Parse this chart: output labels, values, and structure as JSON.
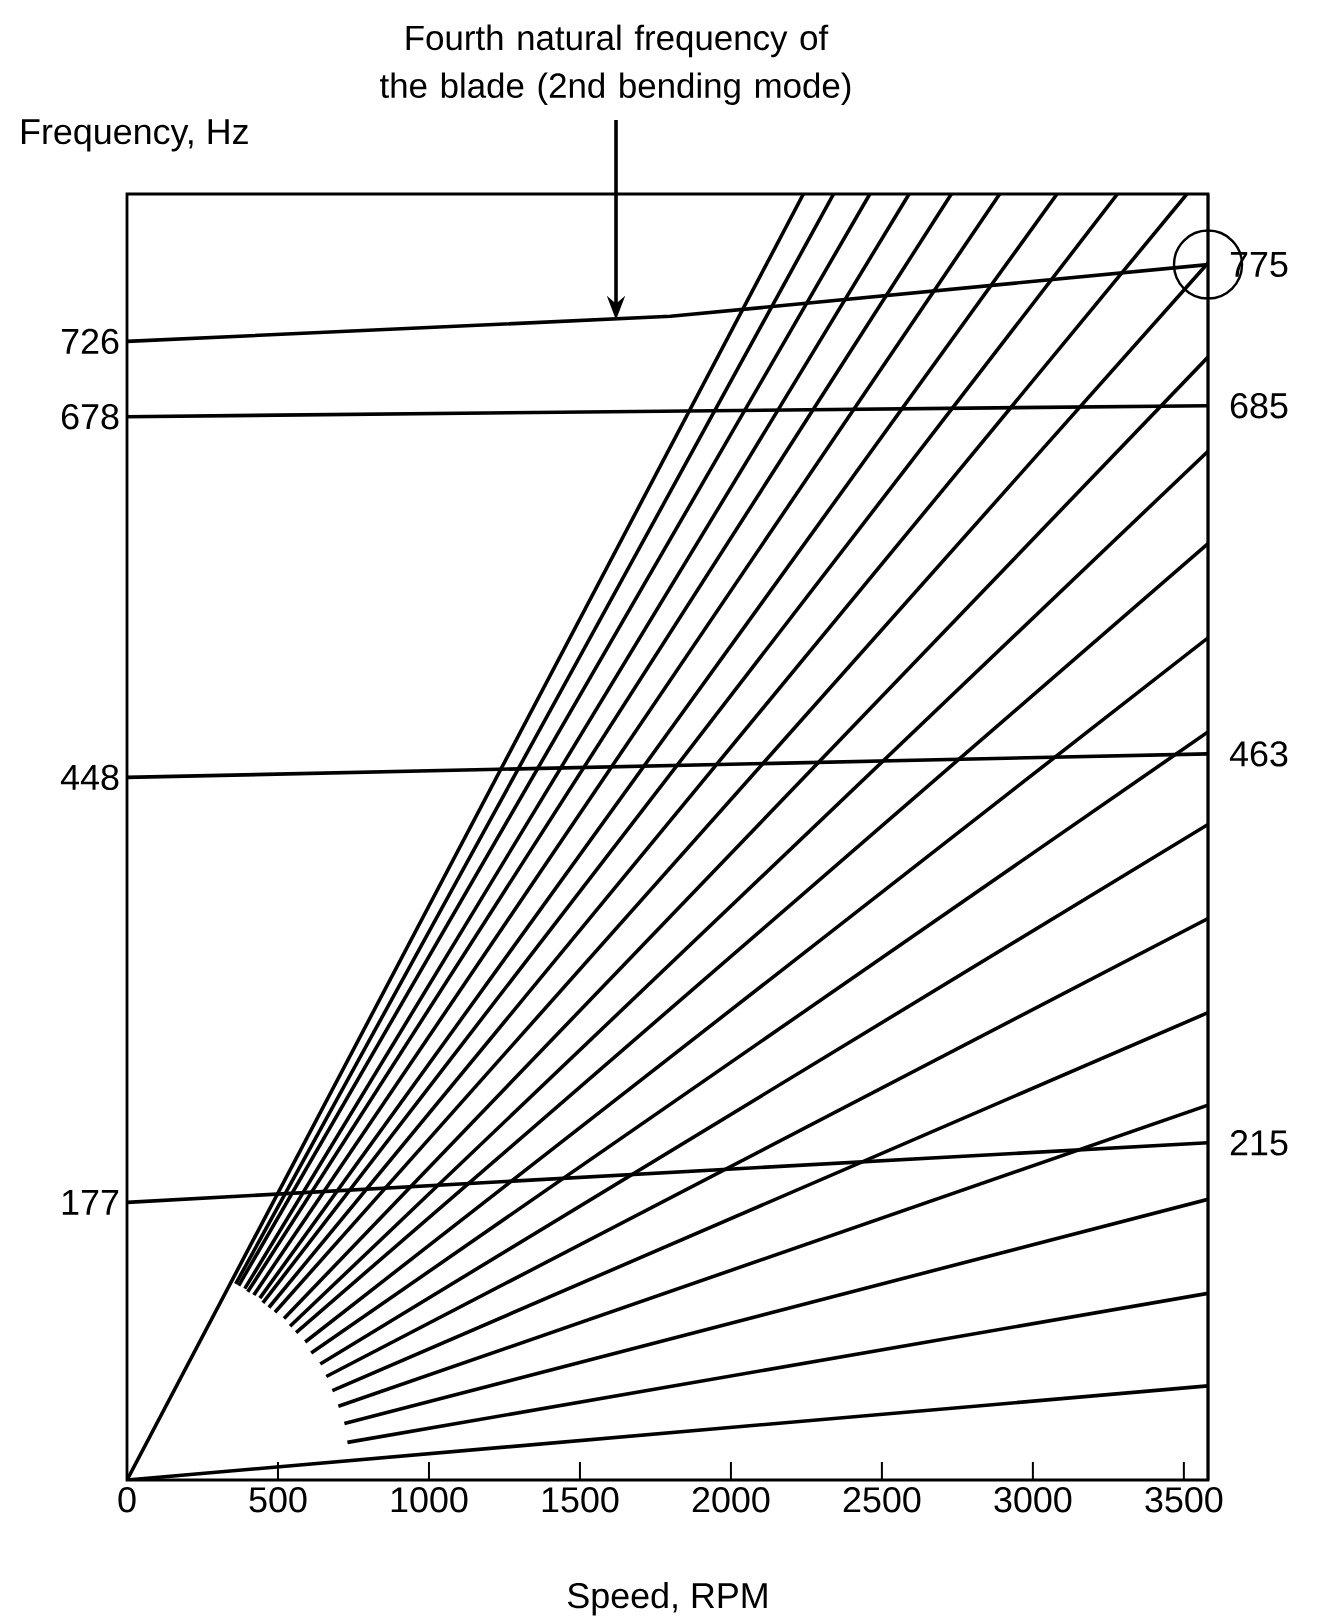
{
  "chart_data": {
    "type": "line",
    "xlabel": "Speed, RPM",
    "ylabel": "Frequency, Hz",
    "annotations": [
      "Fourth natural frequency of the blade (2nd bending mode)"
    ],
    "xlim": [
      0,
      3580
    ],
    "ylim": [
      0,
      820
    ],
    "xticks": [
      0,
      500,
      1000,
      1500,
      2000,
      2500,
      3000,
      3500
    ],
    "yticks": [
      177,
      448,
      678,
      726
    ],
    "y2lim": [
      0,
      820
    ],
    "y2ticks": [
      215,
      463,
      685,
      775
    ],
    "marker": "none",
    "line_style": "solid",
    "series": [
      {
        "color": "#000000",
        "x": [
          0,
          3580
        ],
        "values": [
          177,
          215
        ]
      },
      {
        "color": "#000000",
        "x": [
          0,
          3580
        ],
        "values": [
          448,
          463
        ]
      },
      {
        "color": "#000000",
        "x": [
          0,
          3580
        ],
        "values": [
          678,
          685
        ]
      },
      {
        "color": "#000000",
        "x": [
          0,
          1800,
          3580
        ],
        "values": [
          726,
          742,
          775
        ]
      },
      {
        "color": "#000000",
        "x": [
          0,
          3580
        ],
        "values": [
          0,
          60
        ]
      },
      {
        "color": "#000000",
        "x": [
          730,
          3580
        ],
        "values": [
          24,
          119
        ]
      },
      {
        "color": "#000000",
        "x": [
          720,
          3580
        ],
        "values": [
          36,
          179
        ]
      },
      {
        "color": "#000000",
        "x": [
          700,
          3580
        ],
        "values": [
          47,
          239
        ]
      },
      {
        "color": "#000000",
        "x": [
          680,
          3580
        ],
        "values": [
          57,
          298
        ]
      },
      {
        "color": "#000000",
        "x": [
          660,
          3580
        ],
        "values": [
          66,
          358
        ]
      },
      {
        "color": "#000000",
        "x": [
          640,
          3580
        ],
        "values": [
          74,
          418
        ]
      },
      {
        "color": "#000000",
        "x": [
          610,
          3580
        ],
        "values": [
          81,
          477
        ]
      },
      {
        "color": "#000000",
        "x": [
          590,
          3580
        ],
        "values": [
          88,
          537
        ]
      },
      {
        "color": "#000000",
        "x": [
          560,
          3580
        ],
        "values": [
          94,
          597
        ]
      },
      {
        "color": "#000000",
        "x": [
          540,
          3580
        ],
        "values": [
          98,
          656
        ]
      },
      {
        "color": "#000000",
        "x": [
          520,
          3580
        ],
        "values": [
          103,
          716
        ]
      },
      {
        "color": "#000000",
        "x": [
          490,
          3580
        ],
        "values": [
          107,
          776
        ]
      },
      {
        "color": "#000000",
        "x": [
          470,
          3510
        ],
        "values": [
          110,
          820
        ]
      },
      {
        "color": "#000000",
        "x": [
          450,
          3280
        ],
        "values": [
          113,
          820
        ]
      },
      {
        "color": "#000000",
        "x": [
          440,
          3080
        ],
        "values": [
          116,
          820
        ]
      },
      {
        "color": "#000000",
        "x": [
          420,
          2890
        ],
        "values": [
          118,
          820
        ]
      },
      {
        "color": "#000000",
        "x": [
          400,
          2730
        ],
        "values": [
          120,
          820
        ]
      },
      {
        "color": "#000000",
        "x": [
          390,
          2590
        ],
        "values": [
          122,
          820
        ]
      },
      {
        "color": "#000000",
        "x": [
          370,
          2460
        ],
        "values": [
          124,
          820
        ]
      },
      {
        "color": "#000000",
        "x": [
          360,
          2340
        ],
        "values": [
          125,
          820
        ]
      },
      {
        "color": "#000000",
        "x": [
          0,
          2240
        ],
        "values": [
          0,
          820
        ]
      }
    ]
  }
}
